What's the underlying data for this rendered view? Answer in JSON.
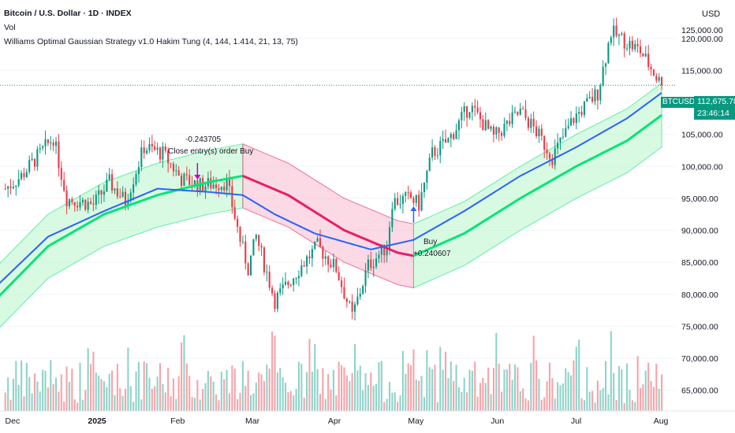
{
  "header": {
    "symbol_line": "Bitcoin / U.S. Dollar · 1D · INDEX",
    "volume_label": "Vol",
    "indicator_label": "Williams Optimal Gaussian Strategy v1.0 Hakim Tung (4, 144, 1.414, 21, 13, 75)"
  },
  "price_axis": {
    "currency": "USD",
    "ticks": [
      "120,000.00",
      "115,000.00",
      "105,000.00",
      "100,000.00",
      "95,000.00",
      "90,000.00",
      "85,000.00",
      "80,000.00",
      "75,000.00",
      "70,000.00",
      "65,000.00"
    ],
    "top_partial_tick": "125,000.00",
    "last_price": "112,675.78",
    "countdown": "23:46:14",
    "ticker": "BTCUSD"
  },
  "time_axis": {
    "labels": [
      "Dec",
      "2025",
      "Feb",
      "Mar",
      "Apr",
      "May",
      "Jun",
      "Jul",
      "Aug"
    ]
  },
  "annotations": {
    "sell_value": "-0.243705",
    "sell_text": "Close entry(s) order Buy",
    "buy_text": "Buy",
    "buy_value": "+0.240607"
  },
  "colors": {
    "up": "#089981",
    "down": "#f23645",
    "gaussian_up": "#00e676",
    "gaussian_down": "#e91e63",
    "band_up_fill": "#b9f6ca",
    "band_down_fill": "#f8bbd0",
    "ma_line": "#2962ff",
    "vol_up": "#8fd3c9",
    "vol_down": "#f7a3a9"
  },
  "chart_data": {
    "type": "candlestick",
    "symbol": "BTCUSD",
    "timeframe": "1D",
    "last_close": 112675.78,
    "anchor_closes": [
      {
        "date": "2024-11-29",
        "close": 96500
      },
      {
        "date": "2024-12-05",
        "close": 98500
      },
      {
        "date": "2024-12-17",
        "close": 104500
      },
      {
        "date": "2024-12-22",
        "close": 95000
      },
      {
        "date": "2025-01-01",
        "close": 94000
      },
      {
        "date": "2025-01-07",
        "close": 97500
      },
      {
        "date": "2025-01-13",
        "close": 94500
      },
      {
        "date": "2025-01-20",
        "close": 103000
      },
      {
        "date": "2025-01-27",
        "close": 102000
      },
      {
        "date": "2025-02-03",
        "close": 98000
      },
      {
        "date": "2025-02-10",
        "close": 97000
      },
      {
        "date": "2025-02-20",
        "close": 97500
      },
      {
        "date": "2025-02-25",
        "close": 88500
      },
      {
        "date": "2025-02-28",
        "close": 84000
      },
      {
        "date": "2025-03-03",
        "close": 89000
      },
      {
        "date": "2025-03-10",
        "close": 79000
      },
      {
        "date": "2025-03-20",
        "close": 84500
      },
      {
        "date": "2025-03-26",
        "close": 87500
      },
      {
        "date": "2025-04-02",
        "close": 84000
      },
      {
        "date": "2025-04-08",
        "close": 76500
      },
      {
        "date": "2025-04-14",
        "close": 84500
      },
      {
        "date": "2025-04-21",
        "close": 87500
      },
      {
        "date": "2025-04-23",
        "close": 94500
      },
      {
        "date": "2025-04-30",
        "close": 95000
      },
      {
        "date": "2025-05-03",
        "close": 94000
      },
      {
        "date": "2025-05-08",
        "close": 102000
      },
      {
        "date": "2025-05-14",
        "close": 104000
      },
      {
        "date": "2025-05-22",
        "close": 109500
      },
      {
        "date": "2025-05-31",
        "close": 104500
      },
      {
        "date": "2025-06-10",
        "close": 108500
      },
      {
        "date": "2025-06-15",
        "close": 106000
      },
      {
        "date": "2025-06-22",
        "close": 101500
      },
      {
        "date": "2025-06-30",
        "close": 107500
      },
      {
        "date": "2025-07-09",
        "close": 111500
      },
      {
        "date": "2025-07-14",
        "close": 121000
      },
      {
        "date": "2025-07-25",
        "close": 118000
      },
      {
        "date": "2025-08-02",
        "close": 112675.78
      }
    ],
    "y_range": [
      62000,
      126000
    ],
    "gaussian_filter": [
      {
        "date": "2024-11-25",
        "value": 79000
      },
      {
        "date": "2024-12-15",
        "value": 87500
      },
      {
        "date": "2025-01-05",
        "value": 92500
      },
      {
        "date": "2025-01-25",
        "value": 95500
      },
      {
        "date": "2025-02-13",
        "value": 97500
      },
      {
        "date": "2025-02-26",
        "value": 98500
      },
      {
        "date": "2025-03-15",
        "value": 95500
      },
      {
        "date": "2025-04-05",
        "value": 90000
      },
      {
        "date": "2025-04-25",
        "value": 86500
      },
      {
        "date": "2025-05-01",
        "value": 86000
      },
      {
        "date": "2025-05-20",
        "value": 89500
      },
      {
        "date": "2025-06-10",
        "value": 95000
      },
      {
        "date": "2025-07-01",
        "value": 100000
      },
      {
        "date": "2025-07-20",
        "value": 104000
      },
      {
        "date": "2025-08-02",
        "value": 108000
      }
    ],
    "band_width": 5000,
    "moving_average": [
      {
        "date": "2024-11-25",
        "value": 81000
      },
      {
        "date": "2024-12-15",
        "value": 89000
      },
      {
        "date": "2025-01-05",
        "value": 93000
      },
      {
        "date": "2025-01-25",
        "value": 96500
      },
      {
        "date": "2025-02-13",
        "value": 96000
      },
      {
        "date": "2025-02-26",
        "value": 95500
      },
      {
        "date": "2025-03-10",
        "value": 92500
      },
      {
        "date": "2025-03-25",
        "value": 89500
      },
      {
        "date": "2025-04-15",
        "value": 87000
      },
      {
        "date": "2025-05-01",
        "value": 88500
      },
      {
        "date": "2025-05-20",
        "value": 93000
      },
      {
        "date": "2025-06-10",
        "value": 98500
      },
      {
        "date": "2025-07-01",
        "value": 103000
      },
      {
        "date": "2025-07-20",
        "value": 107500
      },
      {
        "date": "2025-08-02",
        "value": 111500
      }
    ],
    "signals": [
      {
        "type": "close_buy",
        "date": "2025-02-09",
        "value": "-0.243705",
        "text": "Close entry(s) order Buy"
      },
      {
        "type": "buy",
        "date": "2025-05-01",
        "value": "+0.240607",
        "text": "Buy"
      }
    ]
  }
}
